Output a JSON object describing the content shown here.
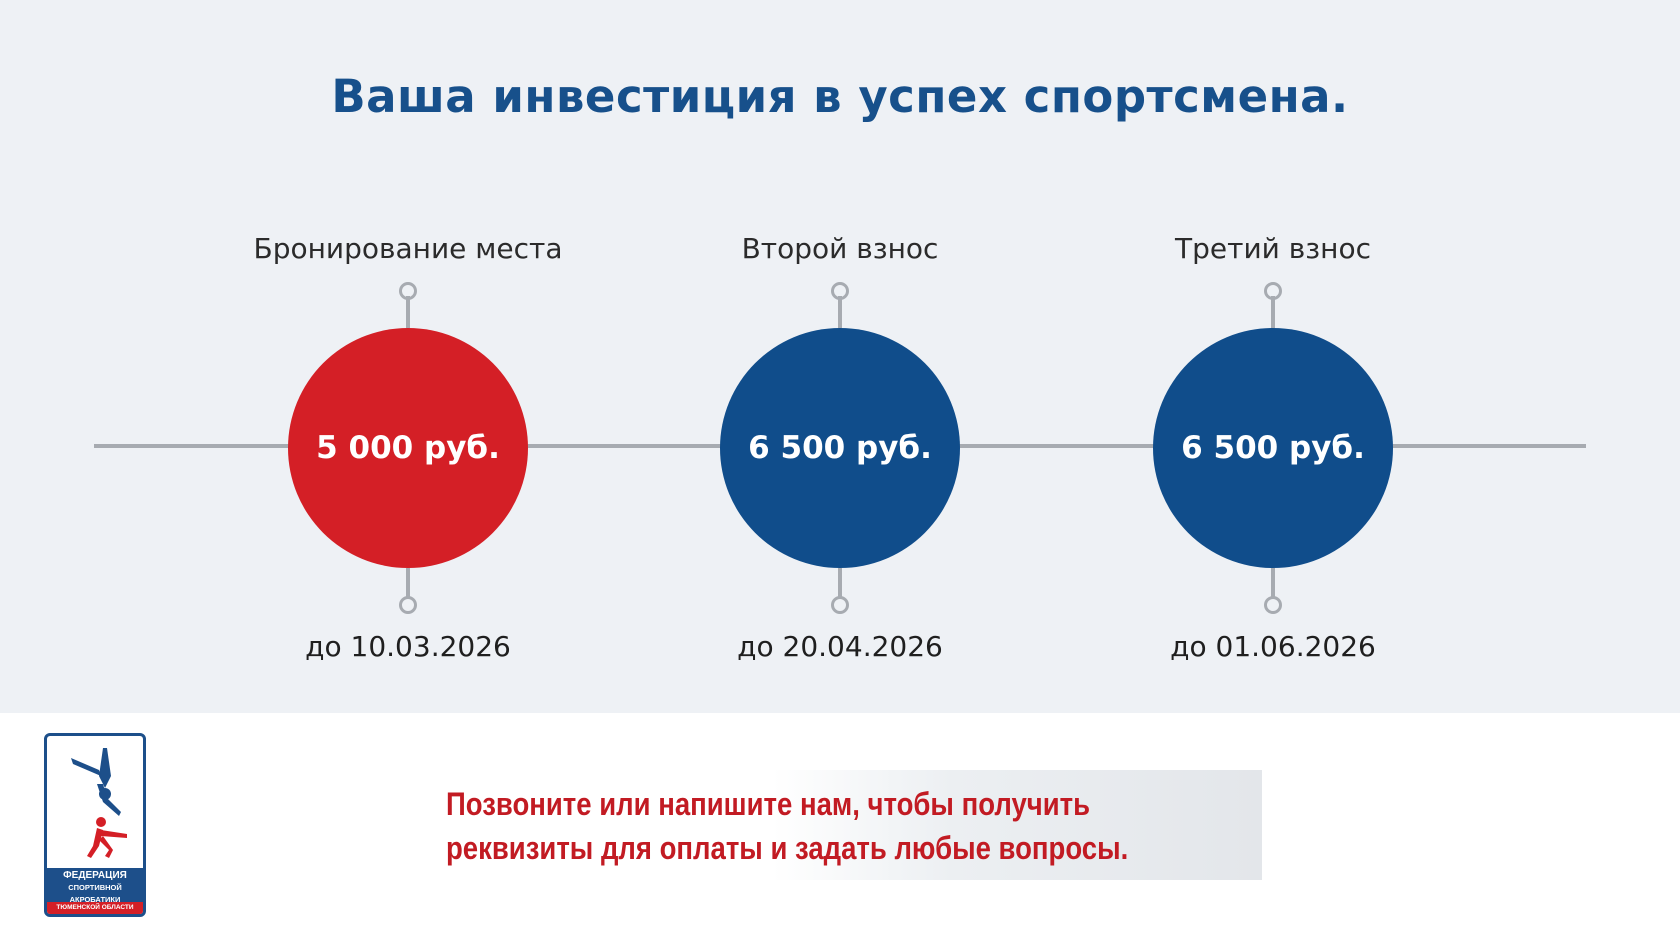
{
  "title": "Ваша инвестиция в успех спортсмена.",
  "steps": [
    {
      "label": "Бронирование места",
      "amount": "5 000 руб.",
      "date": "до 10.03.2026",
      "color": "#d41f26"
    },
    {
      "label": "Второй взнос",
      "amount": "6 500 руб.",
      "date": "до 20.04.2026",
      "color": "#104d8b"
    },
    {
      "label": "Третий взнос",
      "amount": "6 500 руб.",
      "date": "до 01.06.2026",
      "color": "#104d8b"
    }
  ],
  "contact": {
    "line1": "Позвоните или напишите нам, чтобы получить",
    "line2": "реквизиты для оплаты и задать любые вопросы."
  },
  "logo": {
    "line1": "ФЕДЕРАЦИЯ",
    "line2": "СПОРТИВНОЙ АКРОБАТИКИ",
    "line3": "ТЮМЕНСКОЙ ОБЛАСТИ"
  },
  "colors": {
    "brand_blue": "#17508b",
    "accent_red": "#d41f26",
    "circle_blue": "#104d8b"
  }
}
